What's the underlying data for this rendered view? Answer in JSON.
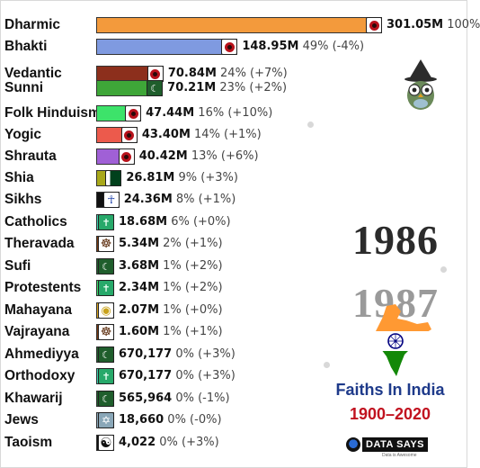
{
  "chart_data": {
    "type": "bar",
    "orientation": "horizontal",
    "year": "1986",
    "next_year": "1987",
    "title": "Faiths In India",
    "subtitle": "1900–2020",
    "brand": "DATA SAYS",
    "brand_tagline": "Data is Awesome",
    "xlim": [
      0,
      301.05
    ],
    "bars": [
      {
        "name": "Dharmic",
        "value": 301.05,
        "label": "301.05M",
        "pct": "100%",
        "change": "",
        "color": "#f39a3c",
        "icon": "chakra-icon",
        "icon_style": "chakra"
      },
      {
        "name": "Bhakti",
        "value": 148.95,
        "label": "148.95M",
        "pct": "49%",
        "change": "(-4%)",
        "color": "#7f9ae0",
        "icon": "chakra-icon",
        "icon_style": "chakra"
      },
      {
        "name": "Vedantic",
        "value": 70.84,
        "label": "70.84M",
        "pct": "24%",
        "change": "(+7%)",
        "color": "#8c2f1c",
        "icon": "chakra-icon",
        "icon_style": "chakra"
      },
      {
        "name": "Sunni",
        "value": 70.21,
        "label": "70.21M",
        "pct": "23%",
        "change": "(+2%)",
        "color": "#3ea638",
        "icon": "crescent-icon",
        "icon_style": "moon"
      },
      {
        "name": "Folk Hinduism",
        "value": 47.44,
        "label": "47.44M",
        "pct": "16%",
        "change": "(+10%)",
        "color": "#3de36a",
        "icon": "chakra-icon",
        "icon_style": "chakra"
      },
      {
        "name": "Yogic",
        "value": 43.4,
        "label": "43.40M",
        "pct": "14%",
        "change": "(+1%)",
        "color": "#ec5a4c",
        "icon": "chakra-icon",
        "icon_style": "chakra"
      },
      {
        "name": "Shrauta",
        "value": 40.42,
        "label": "40.42M",
        "pct": "13%",
        "change": "(+6%)",
        "color": "#a060d6",
        "icon": "chakra-icon",
        "icon_style": "chakra"
      },
      {
        "name": "Shia",
        "value": 26.81,
        "label": "26.81M",
        "pct": "9%",
        "change": "(+3%)",
        "color": "#a8a81a",
        "icon": "pakistan-flag-icon",
        "icon_style": "pak"
      },
      {
        "name": "Sikhs",
        "value": 24.36,
        "label": "24.36M",
        "pct": "8%",
        "change": "(+1%)",
        "color": "#111111",
        "icon": "khanda-icon",
        "icon_style": "khanda"
      },
      {
        "name": "Catholics",
        "value": 18.68,
        "label": "18.68M",
        "pct": "6%",
        "change": "(+0%)",
        "color": "#3ccfb0",
        "icon": "cross-icon",
        "icon_style": "cross"
      },
      {
        "name": "Theravada",
        "value": 5.34,
        "label": "5.34M",
        "pct": "2%",
        "change": "(+1%)",
        "color": "#7a3b10",
        "icon": "dharma-wheel-icon",
        "icon_style": "wheel"
      },
      {
        "name": "Sufi",
        "value": 3.68,
        "label": "3.68M",
        "pct": "1%",
        "change": "(+2%)",
        "color": "#1f5e2c",
        "icon": "crescent-icon",
        "icon_style": "moon"
      },
      {
        "name": "Protestents",
        "value": 2.34,
        "label": "2.34M",
        "pct": "1%",
        "change": "(+2%)",
        "color": "#3ddc6c",
        "icon": "cross-icon",
        "icon_style": "cross"
      },
      {
        "name": "Mahayana",
        "value": 2.07,
        "label": "2.07M",
        "pct": "1%",
        "change": "(+0%)",
        "color": "#d9a31b",
        "icon": "buddha-icon",
        "icon_style": "goldc"
      },
      {
        "name": "Vajrayana",
        "value": 1.6,
        "label": "1.60M",
        "pct": "1%",
        "change": "(+1%)",
        "color": "#7a3b10",
        "icon": "dharma-wheel-icon",
        "icon_style": "wheel"
      },
      {
        "name": "Ahmediyya",
        "value": 0.670177,
        "label": "670,177",
        "pct": "0%",
        "change": "(+3%)",
        "color": "#1f5e2c",
        "icon": "crescent-icon",
        "icon_style": "moon"
      },
      {
        "name": "Orthodoxy",
        "value": 0.670177,
        "label": "670,177",
        "pct": "0%",
        "change": "(+3%)",
        "color": "#3ccfb0",
        "icon": "cross-icon",
        "icon_style": "cross"
      },
      {
        "name": "Khawarij",
        "value": 0.565964,
        "label": "565,964",
        "pct": "0%",
        "change": "(-1%)",
        "color": "#1f5e2c",
        "icon": "crescent-icon",
        "icon_style": "moon"
      },
      {
        "name": "Jews",
        "value": 0.01866,
        "label": "18,660",
        "pct": "0%",
        "change": "(-0%)",
        "color": "#8aa7b8",
        "icon": "star-of-david-icon",
        "icon_style": "star"
      },
      {
        "name": "Taoism",
        "value": 0.004022,
        "label": "4,022",
        "pct": "0%",
        "change": "(+3%)",
        "color": "#111111",
        "icon": "yin-yang-icon",
        "icon_style": "yin"
      }
    ]
  }
}
